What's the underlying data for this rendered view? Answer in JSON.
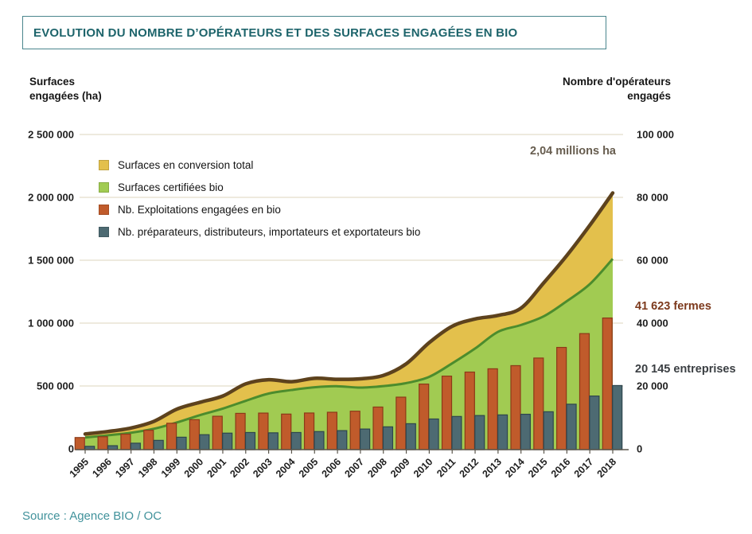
{
  "title": "EVOLUTION DU NOMBRE D’OPÉRATEURS ET DES SURFACES ENGAGÉES EN BIO",
  "left_axis": {
    "title_line1": "Surfaces",
    "title_line2": "engagées (ha)",
    "ticks": [
      "2 500 000",
      "2 000 000",
      "1 500 000",
      "1 000 000",
      "500 000",
      "0"
    ]
  },
  "right_axis": {
    "title_line1": "Nombre d'opérateurs",
    "title_line2": "engagés",
    "ticks": [
      "100 000",
      "80 000",
      "60 000",
      "40 000",
      "20 000",
      "0"
    ]
  },
  "legend": {
    "items": [
      {
        "label": "Surfaces en conversion total",
        "color": "#e3c04c"
      },
      {
        "label": "Surfaces certifiées bio",
        "color": "#a1cb52"
      },
      {
        "label": "Nb. Exploitations engagées en bio",
        "color": "#c05b2b"
      },
      {
        "label": "Nb. préparateurs, distributeurs, importateurs et exportateurs bio",
        "color": "#4d6a72"
      }
    ]
  },
  "annotations": {
    "total_ha": "2,04 millions ha",
    "farms": "41 623 fermes",
    "companies": "20 145 entreprises"
  },
  "source": "Source : Agence BIO / OC",
  "colors": {
    "grid": "#e8e3d4",
    "axis": "#5a564c",
    "text": "#1f1f1f",
    "title": "#1d646b",
    "title_border": "#4a868d",
    "total_line": "#5d421d",
    "certified_line": "#4c8c2d",
    "farm_border": "#8c3a18",
    "company_border": "#2e454d",
    "annotation_total": "#675d4f",
    "annotation_farms": "#7d3a1d",
    "annotation_companies": "#3a3e42",
    "source": "#41929b"
  },
  "chart_data": {
    "type": "combo",
    "subtypes": [
      "area",
      "area",
      "bar",
      "bar"
    ],
    "stacking": "conversion area stacked on top of certified area",
    "x": [
      1995,
      1996,
      1997,
      1998,
      1999,
      2000,
      2001,
      2002,
      2003,
      2004,
      2005,
      2006,
      2007,
      2008,
      2009,
      2010,
      2011,
      2012,
      2013,
      2014,
      2015,
      2016,
      2017,
      2018
    ],
    "series": [
      {
        "name": "Surfaces en conversion total",
        "type": "area",
        "axis": "left",
        "unit": "ha",
        "color": "#e3c04c",
        "values": [
          28000,
          30000,
          38000,
          59000,
          106000,
          102000,
          100000,
          135000,
          110000,
          66000,
          71000,
          55000,
          70000,
          85000,
          154000,
          272000,
          295000,
          235000,
          130000,
          134000,
          267000,
          363000,
          468000,
          524000
        ]
      },
      {
        "name": "Surfaces certifiées bio",
        "type": "area",
        "axis": "left",
        "unit": "ha",
        "color": "#a1cb52",
        "values": [
          90000,
          108000,
          128000,
          160000,
          210000,
          268000,
          320000,
          382000,
          440000,
          468000,
          490000,
          498000,
          487000,
          499000,
          523000,
          573000,
          680000,
          798000,
          931000,
          985000,
          1055000,
          1175000,
          1310000,
          1511000
        ]
      },
      {
        "name": "Nb. Exploitations engagées en bio",
        "type": "bar",
        "axis": "right",
        "unit": "opérateurs",
        "color": "#c05b2b",
        "values": [
          3602,
          3854,
          4680,
          5914,
          8140,
          9283,
          10364,
          11288,
          11377,
          11059,
          11402,
          11640,
          11978,
          13298,
          16446,
          20604,
          23135,
          24425,
          25467,
          26466,
          28884,
          32264,
          36664,
          41623
        ]
      },
      {
        "name": "Nb. préparateurs, distributeurs, importateurs et exportateurs bio",
        "type": "bar",
        "axis": "right",
        "unit": "opérateurs",
        "color": "#4d6a72",
        "values": [
          800,
          1000,
          1800,
          2700,
          3700,
          4500,
          5000,
          5200,
          5100,
          5200,
          5500,
          5800,
          6300,
          7000,
          8000,
          9500,
          10300,
          10600,
          10800,
          11000,
          11800,
          14200,
          16800,
          20145
        ]
      }
    ],
    "title": "Evolution du nombre d'opérateurs et des surfaces engagées en bio",
    "xlabel": "",
    "ylabel_left": "Surfaces engagées (ha)",
    "ylabel_right": "Nombre d'opérateurs engagés",
    "left_ylim": [
      0,
      2500000
    ],
    "right_ylim": [
      0,
      100000
    ],
    "grid": true,
    "legend_position": "upper left"
  }
}
